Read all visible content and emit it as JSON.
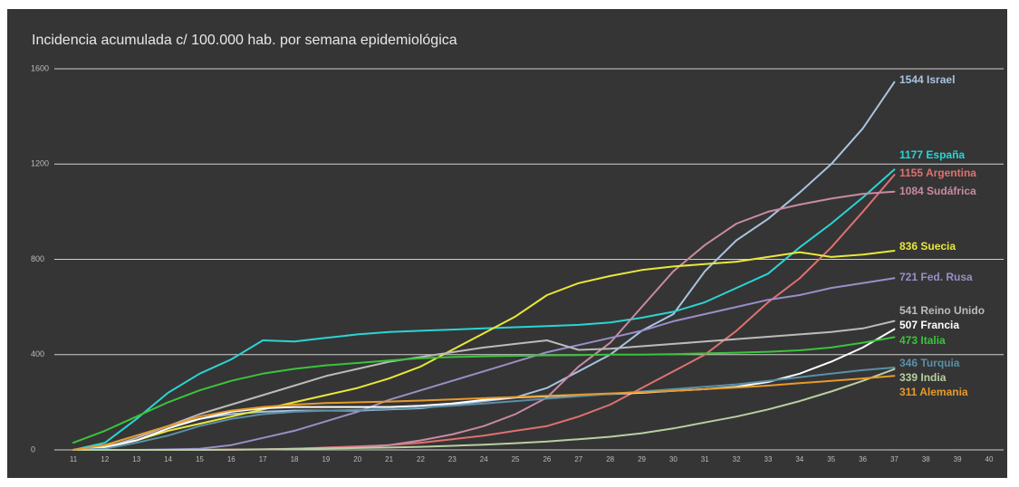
{
  "chart_data": {
    "type": "line",
    "title": "Incidencia acumulada c/ 100.000 hab. por semana epidemiológica",
    "categories": [
      "11",
      "12",
      "13",
      "14",
      "15",
      "16",
      "17",
      "18",
      "19",
      "20",
      "21",
      "22",
      "23",
      "24",
      "25",
      "26",
      "27",
      "28",
      "29",
      "30",
      "31",
      "32",
      "33",
      "34",
      "35",
      "36",
      "37",
      "38",
      "39",
      "40"
    ],
    "ylim": [
      0,
      1600
    ],
    "yticks": [
      0,
      400,
      800,
      1200,
      1600
    ],
    "grid": true,
    "series": [
      {
        "name": "Israel",
        "color": "#a9c4e0",
        "values": [
          0,
          20,
          60,
          100,
          130,
          150,
          160,
          165,
          165,
          165,
          170,
          175,
          190,
          205,
          220,
          260,
          330,
          400,
          500,
          570,
          750,
          880,
          970,
          1080,
          1200,
          1350,
          1544,
          null,
          null,
          null
        ]
      },
      {
        "name": "España",
        "color": "#2bd4d4",
        "values": [
          0,
          30,
          130,
          240,
          320,
          380,
          460,
          455,
          470,
          485,
          495,
          500,
          505,
          510,
          515,
          520,
          525,
          535,
          555,
          580,
          620,
          680,
          740,
          850,
          950,
          1060,
          1177,
          null,
          null,
          null
        ]
      },
      {
        "name": "Argentina",
        "color": "#e07070",
        "values": [
          0,
          0,
          0,
          0,
          0,
          1,
          2,
          5,
          10,
          15,
          20,
          30,
          45,
          60,
          80,
          100,
          140,
          190,
          260,
          330,
          400,
          500,
          620,
          720,
          850,
          1000,
          1155,
          null,
          null,
          null
        ]
      },
      {
        "name": "Sudáfrica",
        "color": "#c98aa3",
        "values": [
          0,
          0,
          0,
          0,
          0,
          1,
          3,
          5,
          8,
          10,
          20,
          40,
          65,
          100,
          150,
          220,
          350,
          450,
          600,
          750,
          860,
          950,
          1000,
          1030,
          1055,
          1075,
          1084,
          null,
          null,
          null
        ]
      },
      {
        "name": "Suecia",
        "color": "#e8e83a",
        "values": [
          0,
          15,
          40,
          80,
          110,
          140,
          170,
          200,
          230,
          260,
          300,
          350,
          420,
          490,
          560,
          650,
          700,
          730,
          755,
          770,
          780,
          790,
          810,
          830,
          810,
          820,
          836,
          null,
          null,
          null
        ]
      },
      {
        "name": "Fed. Rusa",
        "color": "#9a8ec8",
        "values": [
          0,
          0,
          0,
          2,
          5,
          20,
          50,
          80,
          120,
          160,
          210,
          250,
          290,
          330,
          370,
          410,
          440,
          470,
          500,
          540,
          570,
          600,
          630,
          650,
          680,
          700,
          721,
          null,
          null,
          null
        ]
      },
      {
        "name": "Reino Unido",
        "color": "#bbbbbb",
        "values": [
          0,
          10,
          50,
          100,
          150,
          190,
          230,
          270,
          310,
          340,
          370,
          390,
          410,
          430,
          445,
          460,
          420,
          425,
          435,
          445,
          455,
          465,
          475,
          485,
          495,
          510,
          541,
          null,
          null,
          null
        ]
      },
      {
        "name": "Francia",
        "color": "#ffffff",
        "values": [
          0,
          10,
          40,
          90,
          130,
          160,
          175,
          180,
          180,
          180,
          180,
          185,
          195,
          210,
          220,
          225,
          230,
          235,
          240,
          248,
          255,
          265,
          285,
          320,
          370,
          430,
          507,
          null,
          null,
          null
        ]
      },
      {
        "name": "Italia",
        "color": "#3ac43a",
        "values": [
          30,
          80,
          140,
          200,
          250,
          290,
          320,
          340,
          355,
          365,
          375,
          385,
          390,
          393,
          395,
          397,
          398,
          400,
          400,
          402,
          405,
          408,
          412,
          418,
          430,
          450,
          473,
          null,
          null,
          null
        ]
      },
      {
        "name": "Turquia",
        "color": "#5a8fa8",
        "values": [
          0,
          5,
          30,
          60,
          100,
          130,
          150,
          160,
          165,
          168,
          172,
          178,
          185,
          195,
          205,
          215,
          225,
          235,
          245,
          255,
          265,
          275,
          290,
          305,
          320,
          335,
          346,
          null,
          null,
          null
        ]
      },
      {
        "name": "India",
        "color": "#b8d0a0",
        "values": [
          0,
          0,
          0,
          0,
          0,
          1,
          2,
          4,
          6,
          8,
          10,
          13,
          17,
          22,
          28,
          35,
          45,
          55,
          70,
          90,
          115,
          140,
          170,
          205,
          245,
          290,
          339,
          null,
          null,
          null
        ]
      },
      {
        "name": "Alemania",
        "color": "#e89a2a",
        "values": [
          0,
          20,
          60,
          100,
          140,
          165,
          180,
          190,
          197,
          200,
          203,
          207,
          212,
          217,
          222,
          227,
          232,
          237,
          242,
          248,
          255,
          262,
          270,
          280,
          290,
          300,
          311,
          null,
          null,
          null
        ]
      }
    ]
  }
}
